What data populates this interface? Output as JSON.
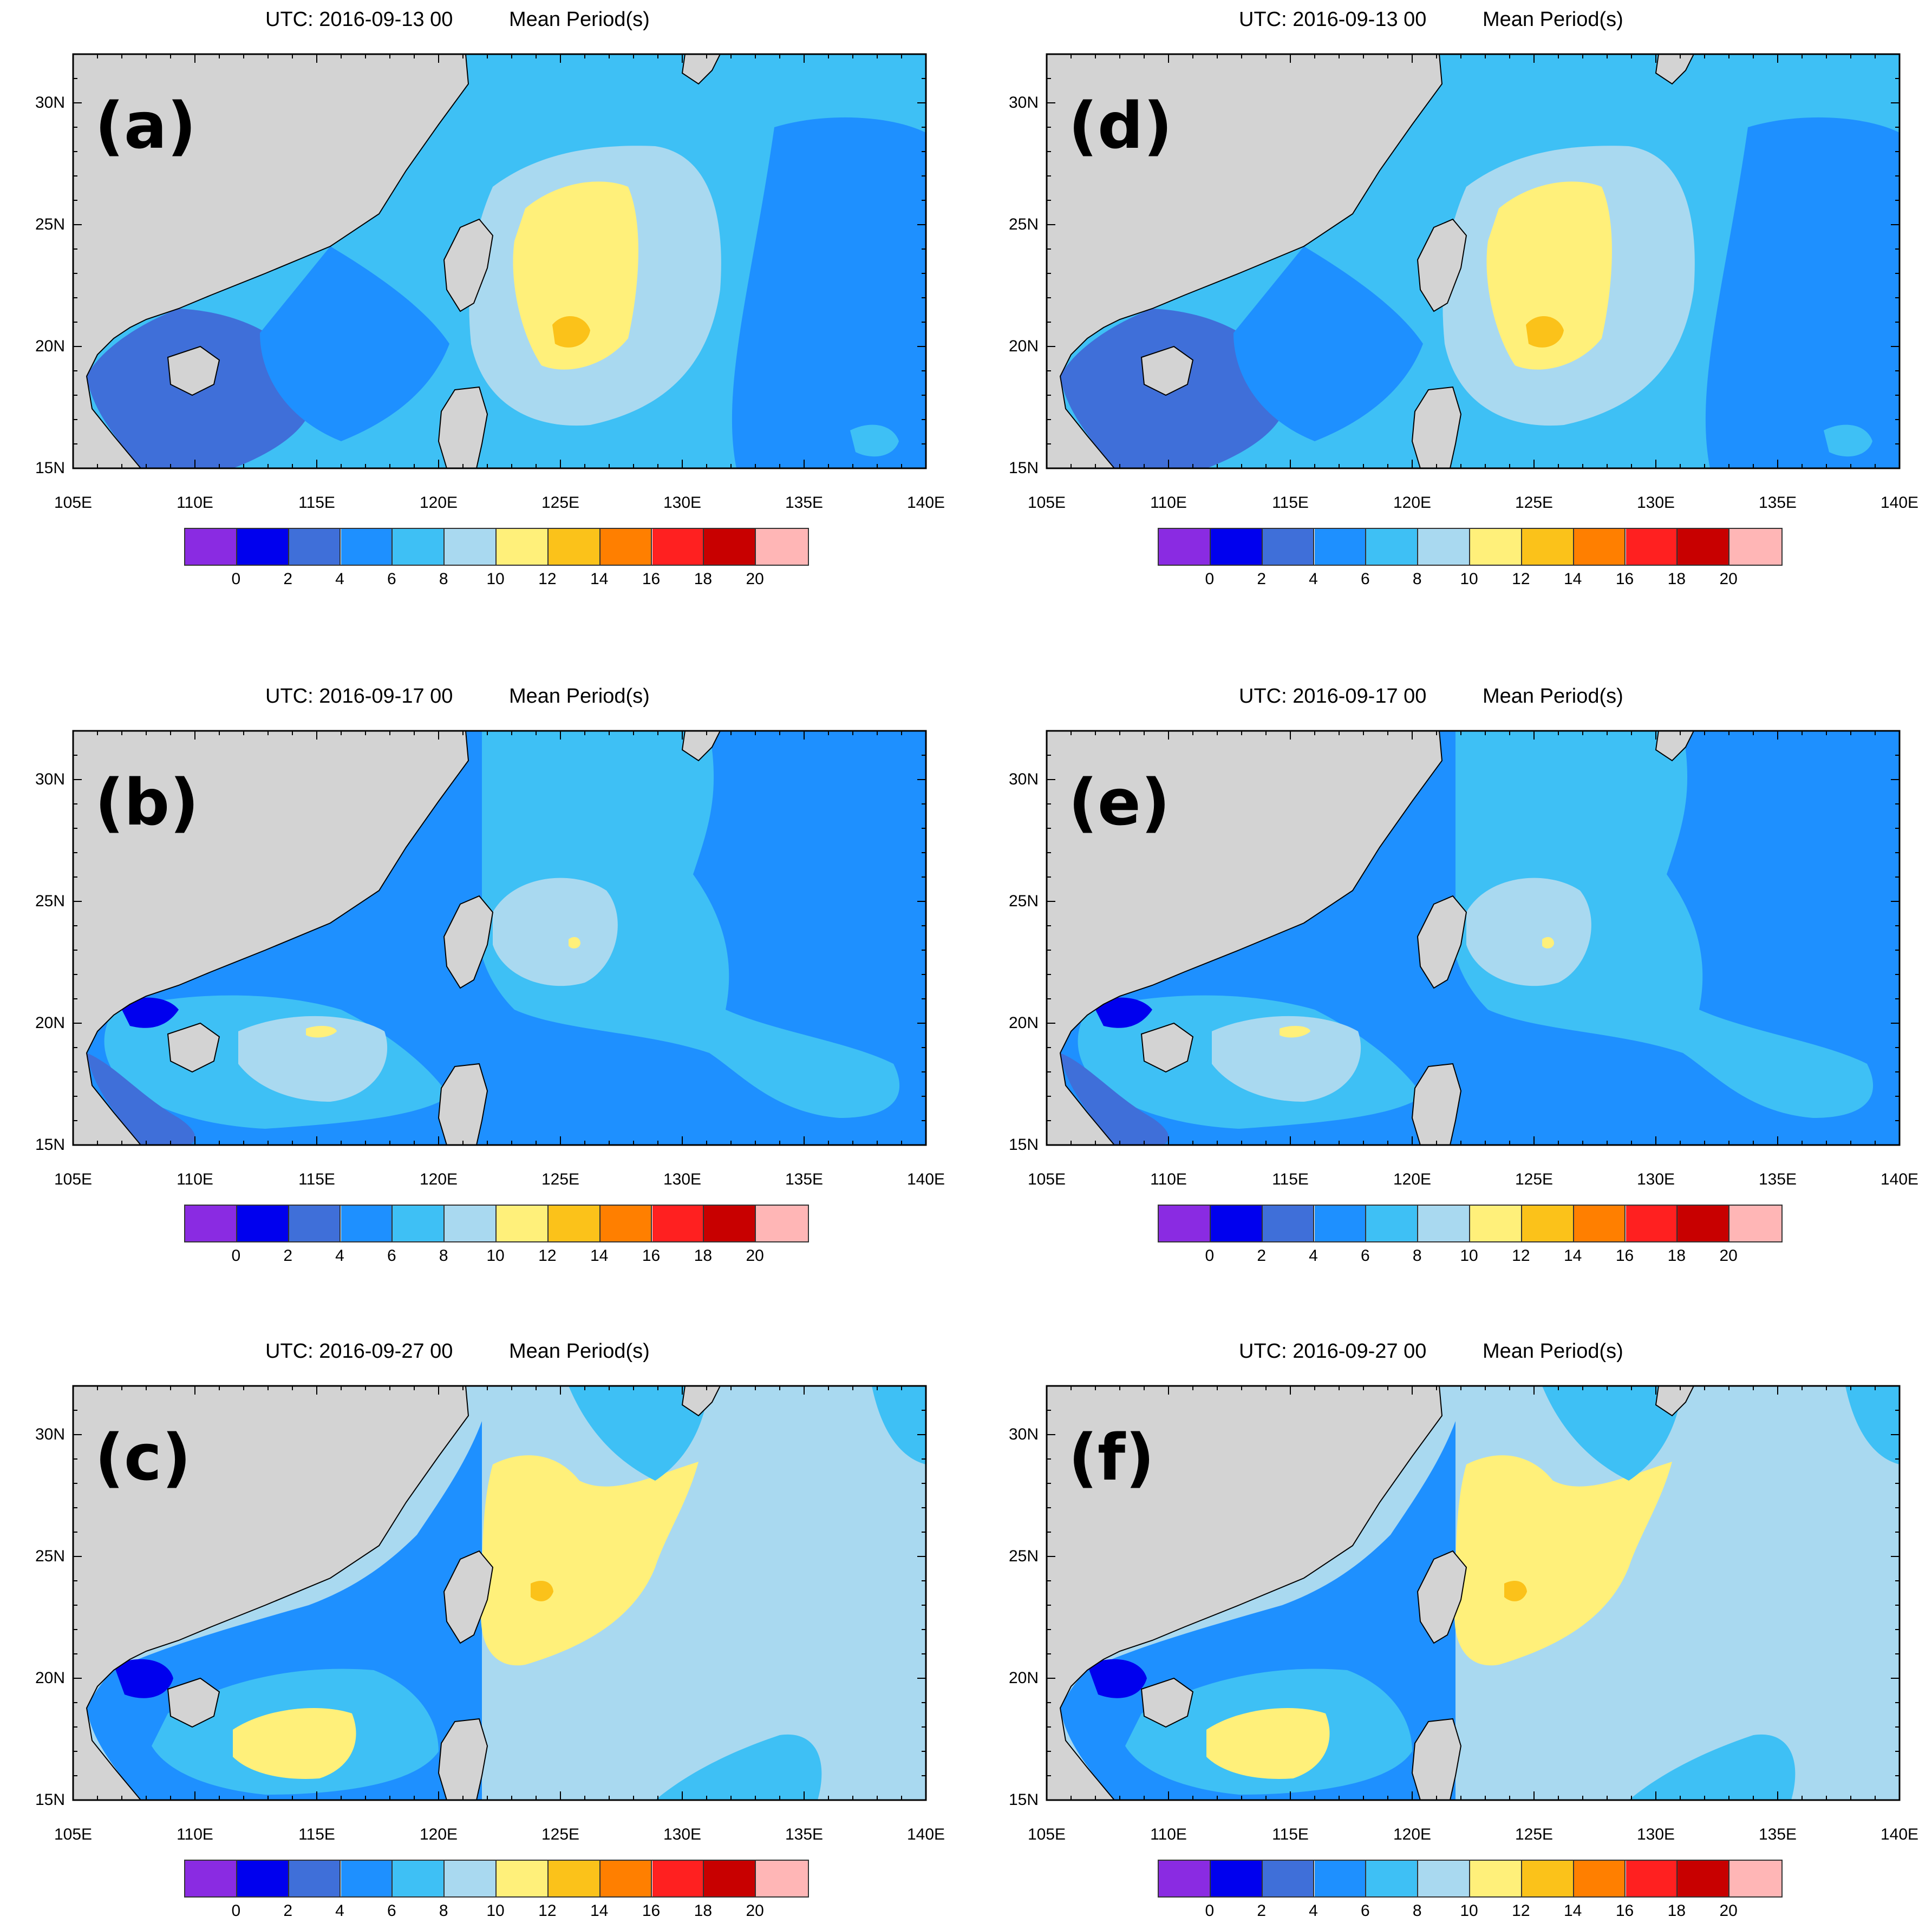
{
  "colorbar": {
    "colors": [
      "#8a2be2",
      "#0000ee",
      "#3f6fd9",
      "#1e90ff",
      "#3ec0f5",
      "#a9d9f0",
      "#fff07a",
      "#fbc21a",
      "#ff7f00",
      "#ff2020",
      "#c80000",
      "#ffb6b6"
    ],
    "labels": [
      "0",
      "2",
      "4",
      "6",
      "8",
      "10",
      "12",
      "14",
      "16",
      "18",
      "20"
    ]
  },
  "axes": {
    "lon_labels": [
      "105E",
      "110E",
      "115E",
      "120E",
      "125E",
      "130E",
      "135E",
      "140E"
    ],
    "lat_labels": [
      "30N",
      "25N",
      "20N",
      "15N"
    ],
    "lon_range": [
      105,
      140
    ],
    "lat_range": [
      15,
      32
    ]
  },
  "land_color": "#d3d3d3",
  "panels": [
    {
      "id": "a",
      "label": "(a)",
      "date": "UTC: 2016-09-13 00",
      "variable": "Mean Period(s)",
      "scene": "s13"
    },
    {
      "id": "d",
      "label": "(d)",
      "date": "UTC: 2016-09-13 00",
      "variable": "Mean Period(s)",
      "scene": "s13"
    },
    {
      "id": "b",
      "label": "(b)",
      "date": "UTC: 2016-09-17 00",
      "variable": "Mean Period(s)",
      "scene": "s17"
    },
    {
      "id": "e",
      "label": "(e)",
      "date": "UTC: 2016-09-17 00",
      "variable": "Mean Period(s)",
      "scene": "s17"
    },
    {
      "id": "c",
      "label": "(c)",
      "date": "UTC: 2016-09-27 00",
      "variable": "Mean Period(s)",
      "scene": "s27"
    },
    {
      "id": "f",
      "label": "(f)",
      "date": "UTC: 2016-09-27 00",
      "variable": "Mean Period(s)",
      "scene": "s27"
    }
  ]
}
